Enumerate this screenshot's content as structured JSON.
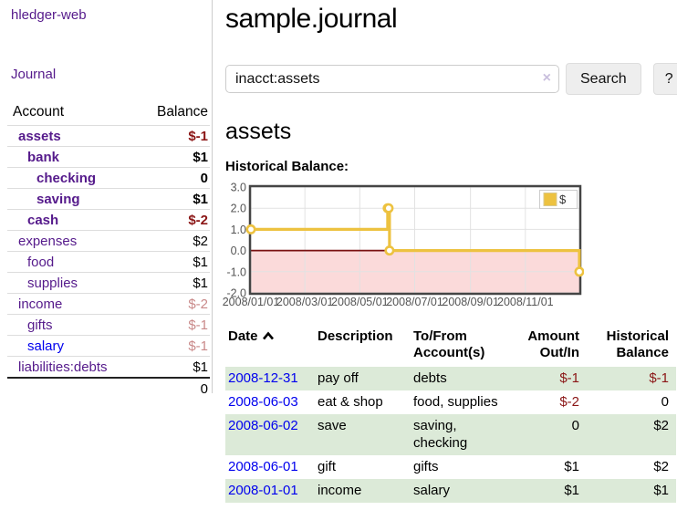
{
  "sidebar": {
    "brand": "hledger-web",
    "journal_link": "Journal",
    "accounts": {
      "header_account": "Account",
      "header_balance": "Balance",
      "rows": [
        {
          "name": "assets",
          "indent": 1,
          "bold": true,
          "balance": "$-1",
          "style": "neg-strong"
        },
        {
          "name": "bank",
          "indent": 2,
          "bold": true,
          "balance": "$1",
          "style": "pos"
        },
        {
          "name": "checking",
          "indent": 3,
          "bold": true,
          "balance": "0",
          "style": "pos"
        },
        {
          "name": "saving",
          "indent": 3,
          "bold": true,
          "balance": "$1",
          "style": "pos"
        },
        {
          "name": "cash",
          "indent": 2,
          "bold": true,
          "balance": "$-2",
          "style": "neg-strong"
        },
        {
          "name": "expenses",
          "indent": 1,
          "bold": false,
          "balance": "$2",
          "style": "pos"
        },
        {
          "name": "food",
          "indent": 2,
          "bold": false,
          "balance": "$1",
          "style": "pos"
        },
        {
          "name": "supplies",
          "indent": 2,
          "bold": false,
          "balance": "$1",
          "style": "pos"
        },
        {
          "name": "income",
          "indent": 1,
          "bold": false,
          "balance": "$-2",
          "style": "neg-soft"
        },
        {
          "name": "gifts",
          "indent": 2,
          "bold": false,
          "balance": "$-1",
          "style": "neg-soft"
        },
        {
          "name": "salary",
          "indent": 2,
          "bold": false,
          "balance": "$-1",
          "style": "neg-soft",
          "link_blue": true
        },
        {
          "name": "liabilities:debts",
          "indent": 1,
          "bold": false,
          "balance": "$1",
          "style": "pos"
        }
      ],
      "total": "0"
    }
  },
  "main": {
    "title": "sample.journal",
    "search": {
      "value": "inacct:assets",
      "clear_icon": "×",
      "button_label": "Search",
      "help_label": "?"
    },
    "account_heading": "assets",
    "chart_heading": "Historical Balance:"
  },
  "chart_data": {
    "type": "line",
    "title": "Historical Balance:",
    "series": [
      {
        "name": "$",
        "color": "#edc240",
        "step": true,
        "points": [
          [
            "2008-01-01",
            1
          ],
          [
            "2008-06-01",
            2
          ],
          [
            "2008-06-02",
            2
          ],
          [
            "2008-06-03",
            0
          ],
          [
            "2008-12-31",
            -1
          ]
        ]
      }
    ],
    "xlim": [
      "2008-01-01",
      "2008-12-31"
    ],
    "ylim": [
      -2,
      3
    ],
    "y_ticks": [
      "3.0",
      "2.0",
      "1.0",
      "0.0",
      "-1.0",
      "-2.0"
    ],
    "x_ticks": [
      "2008/01/01",
      "2008/03/01",
      "2008/05/01",
      "2008/07/01",
      "2008/09/01",
      "2008/11/01"
    ],
    "legend": "$",
    "legend_position": "top-right",
    "grid": true,
    "negative_region_fill": "#fbdada",
    "zero_line_color": "#7a1010",
    "frame_color": "#454545",
    "grid_color": "#e2e2e2",
    "tick_label_color": "#555555"
  },
  "register": {
    "headers": {
      "date": "Date",
      "description": "Description",
      "tofrom_line1": "To/From",
      "tofrom_line2": "Account(s)",
      "amount_line1": "Amount",
      "amount_line2": "Out/In",
      "balance_line1": "Historical",
      "balance_line2": "Balance"
    },
    "sort": "ascending",
    "rows": [
      {
        "date": "2008-12-31",
        "description": "pay off",
        "accounts": "debts",
        "amount": "$-1",
        "amount_neg": true,
        "balance": "$-1",
        "balance_neg": true
      },
      {
        "date": "2008-06-03",
        "description": "eat & shop",
        "accounts": "food, supplies",
        "amount": "$-2",
        "amount_neg": true,
        "balance": "0",
        "balance_neg": false
      },
      {
        "date": "2008-06-02",
        "description": "save",
        "accounts": "saving, checking",
        "amount": "0",
        "amount_neg": false,
        "balance": "$2",
        "balance_neg": false
      },
      {
        "date": "2008-06-01",
        "description": "gift",
        "accounts": "gifts",
        "amount": "$1",
        "amount_neg": false,
        "balance": "$2",
        "balance_neg": false
      },
      {
        "date": "2008-01-01",
        "description": "income",
        "accounts": "salary",
        "amount": "$1",
        "amount_neg": false,
        "balance": "$1",
        "balance_neg": false
      }
    ]
  },
  "colors": {
    "link_purple": "#551a8b",
    "link_blue": "#0000ee",
    "negative_strong": "#8b1616",
    "negative_soft": "#c98989",
    "row_stripe_green": "#dcead8",
    "chart_series_yellow": "#edc240"
  }
}
